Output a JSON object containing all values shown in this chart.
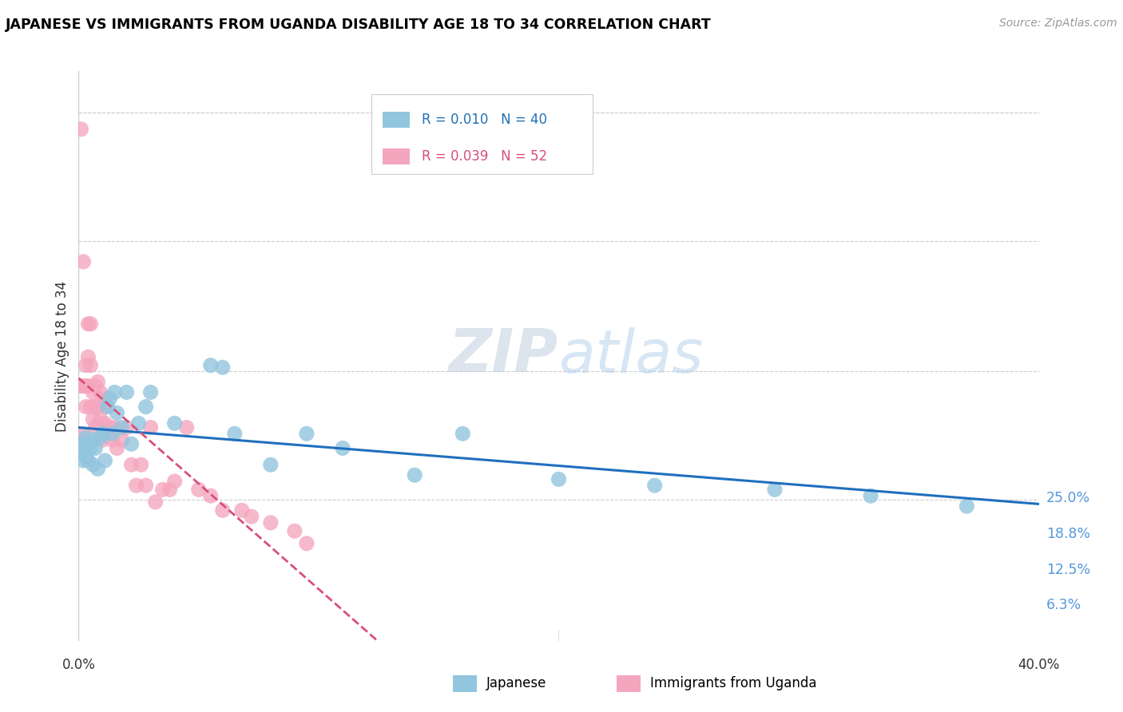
{
  "title": "JAPANESE VS IMMIGRANTS FROM UGANDA DISABILITY AGE 18 TO 34 CORRELATION CHART",
  "source": "Source: ZipAtlas.com",
  "ylabel": "Disability Age 18 to 34",
  "ytick_labels": [
    "6.3%",
    "12.5%",
    "18.8%",
    "25.0%"
  ],
  "ytick_values": [
    0.063,
    0.125,
    0.188,
    0.25
  ],
  "xlim": [
    0.0,
    0.4
  ],
  "ylim": [
    -0.005,
    0.27
  ],
  "legend_label1": "Japanese",
  "legend_label2": "Immigrants from Uganda",
  "R1": "0.010",
  "N1": "40",
  "R2": "0.039",
  "N2": "52",
  "color_blue": "#92c5de",
  "color_pink": "#f4a6be",
  "color_line_blue": "#1f6fbf",
  "color_line_pink": "#d94f7a",
  "japanese_x": [
    0.001,
    0.002,
    0.002,
    0.003,
    0.003,
    0.004,
    0.004,
    0.005,
    0.006,
    0.006,
    0.007,
    0.008,
    0.009,
    0.01,
    0.011,
    0.012,
    0.013,
    0.014,
    0.015,
    0.016,
    0.018,
    0.02,
    0.022,
    0.025,
    0.028,
    0.03,
    0.04,
    0.055,
    0.06,
    0.065,
    0.08,
    0.095,
    0.11,
    0.14,
    0.16,
    0.2,
    0.24,
    0.29,
    0.33,
    0.37
  ],
  "japanese_y": [
    0.09,
    0.088,
    0.082,
    0.093,
    0.084,
    0.09,
    0.082,
    0.088,
    0.092,
    0.08,
    0.088,
    0.078,
    0.093,
    0.095,
    0.082,
    0.108,
    0.112,
    0.095,
    0.115,
    0.105,
    0.098,
    0.115,
    0.09,
    0.1,
    0.108,
    0.115,
    0.1,
    0.128,
    0.127,
    0.095,
    0.08,
    0.095,
    0.088,
    0.075,
    0.095,
    0.073,
    0.07,
    0.068,
    0.065,
    0.06
  ],
  "uganda_x": [
    0.001,
    0.001,
    0.002,
    0.002,
    0.002,
    0.003,
    0.003,
    0.003,
    0.004,
    0.004,
    0.004,
    0.005,
    0.005,
    0.005,
    0.006,
    0.006,
    0.007,
    0.007,
    0.007,
    0.008,
    0.008,
    0.009,
    0.009,
    0.01,
    0.01,
    0.011,
    0.011,
    0.012,
    0.013,
    0.014,
    0.015,
    0.016,
    0.018,
    0.02,
    0.022,
    0.024,
    0.026,
    0.028,
    0.03,
    0.032,
    0.035,
    0.038,
    0.04,
    0.045,
    0.05,
    0.055,
    0.06,
    0.068,
    0.072,
    0.08,
    0.09,
    0.095
  ],
  "uganda_y": [
    0.242,
    0.118,
    0.178,
    0.118,
    0.095,
    0.128,
    0.118,
    0.108,
    0.148,
    0.132,
    0.118,
    0.148,
    0.128,
    0.108,
    0.115,
    0.102,
    0.118,
    0.108,
    0.098,
    0.12,
    0.108,
    0.115,
    0.102,
    0.098,
    0.092,
    0.112,
    0.1,
    0.108,
    0.098,
    0.092,
    0.098,
    0.088,
    0.092,
    0.098,
    0.08,
    0.07,
    0.08,
    0.07,
    0.098,
    0.062,
    0.068,
    0.068,
    0.072,
    0.098,
    0.068,
    0.065,
    0.058,
    0.058,
    0.055,
    0.052,
    0.048,
    0.042
  ]
}
